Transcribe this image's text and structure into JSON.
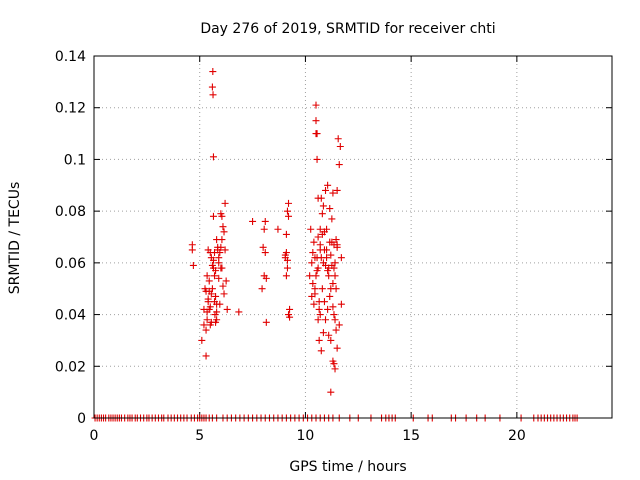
{
  "chart_data": {
    "type": "scatter",
    "title": "Day 276 of 2019, SRMTID for receiver chti",
    "xlabel": "GPS time / hours",
    "ylabel": "SRMTID / TECUs",
    "xlim": [
      0,
      24.5
    ],
    "ylim": [
      0,
      0.14
    ],
    "x_ticks": [
      "0",
      "5",
      "10",
      "15",
      "20"
    ],
    "y_ticks": [
      "0",
      "0.02",
      "0.04",
      "0.06",
      "0.08",
      "0.1",
      "0.12",
      "0.14"
    ],
    "grid": true,
    "legend": "none",
    "marker": "+",
    "color": "#e00000",
    "series": [
      {
        "x": [
          0.05,
          0.15,
          0.25,
          0.35,
          0.45,
          0.55,
          0.7,
          0.8,
          0.9,
          1.0,
          1.1,
          1.2,
          1.3,
          1.45,
          1.6,
          1.7,
          1.8,
          1.95,
          2.05,
          2.2,
          2.35,
          2.5,
          2.6,
          2.75,
          2.9,
          3.05,
          3.2,
          3.3,
          3.5,
          3.65,
          3.8,
          3.95,
          4.1,
          4.25,
          4.4,
          4.6,
          4.75,
          4.9,
          5.0,
          5.1,
          5.2,
          5.3,
          5.45,
          5.6,
          5.8,
          6.1,
          6.3,
          6.5,
          6.7,
          6.9,
          7.1,
          7.3,
          7.5,
          7.7,
          7.9,
          8.1,
          8.3,
          8.5,
          8.7,
          8.9,
          9.1,
          9.3,
          9.5,
          9.7,
          9.9,
          10.1,
          10.3,
          10.5,
          10.7,
          10.9,
          11.1,
          11.3,
          11.6,
          12.1,
          12.5,
          13.1,
          13.6,
          13.8,
          13.95,
          14.1,
          14.25,
          15.1,
          15.8,
          16.0,
          16.9,
          17.1,
          17.6,
          18.1,
          18.5,
          19.2,
          20.2,
          20.8,
          21.0,
          21.15,
          21.3,
          21.45,
          21.6,
          21.75,
          21.9,
          22.05,
          22.2,
          22.35,
          22.5,
          22.65,
          22.75,
          22.85
        ],
        "y": [
          0,
          0,
          0,
          0,
          0,
          0,
          0,
          0,
          0,
          0,
          0,
          0,
          0,
          0,
          0,
          0,
          0,
          0,
          0,
          0,
          0,
          0,
          0,
          0,
          0,
          0,
          0,
          0,
          0,
          0,
          0,
          0,
          0,
          0,
          0,
          0,
          0,
          0,
          0,
          0,
          0,
          0,
          0,
          0,
          0,
          0,
          0,
          0,
          0,
          0,
          0,
          0,
          0,
          0,
          0,
          0,
          0,
          0,
          0,
          0,
          0,
          0,
          0,
          0,
          0,
          0,
          0,
          0,
          0,
          0,
          0,
          0,
          0,
          0,
          0,
          0,
          0,
          0,
          0,
          0,
          0,
          0,
          0,
          0,
          0,
          0,
          0,
          0,
          0,
          0,
          0,
          0,
          0,
          0,
          0,
          0,
          0,
          0,
          0,
          0,
          0,
          0,
          0,
          0,
          0,
          0
        ]
      },
      {
        "x": [
          4.65,
          4.65,
          4.7,
          5.1,
          5.2,
          5.25,
          5.3,
          5.3,
          5.35,
          5.35,
          5.4,
          5.4,
          5.45,
          5.45,
          5.5,
          5.5,
          5.55,
          5.55,
          5.6,
          5.6,
          5.62,
          5.63,
          5.65,
          5.65,
          5.65,
          5.7,
          5.7,
          5.72,
          5.75,
          5.75,
          5.8,
          5.8,
          5.8,
          5.85,
          5.9,
          5.9,
          5.95,
          6.0,
          6.0,
          6.05,
          6.05,
          6.1,
          6.1,
          6.15,
          6.2,
          6.2,
          6.25,
          6.3,
          5.3,
          5.4,
          5.5,
          5.6,
          5.7,
          5.8,
          5.9,
          6.0,
          5.2,
          5.35,
          5.45,
          5.55,
          5.65,
          5.75,
          5.85,
          5.95,
          6.05,
          6.15,
          6.85,
          7.5,
          7.95,
          8.0,
          8.05,
          8.05,
          8.1,
          8.1,
          8.15,
          8.15,
          8.7,
          9.05,
          9.1,
          9.1,
          9.15,
          9.15,
          9.2,
          9.2,
          9.25,
          9.25,
          9.2,
          9.15,
          9.1,
          9.05
        ],
        "y": [
          0.067,
          0.065,
          0.059,
          0.03,
          0.042,
          0.05,
          0.024,
          0.034,
          0.038,
          0.055,
          0.045,
          0.065,
          0.042,
          0.053,
          0.036,
          0.064,
          0.048,
          0.037,
          0.059,
          0.128,
          0.134,
          0.125,
          0.101,
          0.078,
          0.061,
          0.055,
          0.064,
          0.04,
          0.047,
          0.057,
          0.038,
          0.044,
          0.069,
          0.066,
          0.054,
          0.06,
          0.064,
          0.079,
          0.066,
          0.078,
          0.058,
          0.051,
          0.074,
          0.072,
          0.083,
          0.065,
          0.053,
          0.042,
          0.049,
          0.046,
          0.043,
          0.05,
          0.045,
          0.041,
          0.062,
          0.058,
          0.036,
          0.041,
          0.049,
          0.062,
          0.058,
          0.037,
          0.065,
          0.044,
          0.069,
          0.048,
          0.041,
          0.076,
          0.05,
          0.066,
          0.073,
          0.055,
          0.076,
          0.064,
          0.054,
          0.037,
          0.073,
          0.063,
          0.071,
          0.064,
          0.08,
          0.058,
          0.083,
          0.04,
          0.042,
          0.039,
          0.078,
          0.061,
          0.055,
          0.062
        ]
      },
      {
        "x": [
          10.2,
          10.25,
          10.3,
          10.3,
          10.35,
          10.35,
          10.4,
          10.4,
          10.45,
          10.45,
          10.5,
          10.5,
          10.5,
          10.55,
          10.55,
          10.6,
          10.6,
          10.6,
          10.65,
          10.65,
          10.7,
          10.7,
          10.7,
          10.75,
          10.75,
          10.8,
          10.8,
          10.85,
          10.85,
          10.9,
          10.9,
          10.95,
          10.95,
          11.0,
          11.0,
          11.05,
          11.05,
          11.1,
          11.1,
          11.15,
          11.15,
          11.2,
          11.2,
          11.25,
          11.25,
          11.3,
          11.3,
          11.35,
          11.35,
          11.4,
          11.4,
          11.45,
          11.45,
          11.5,
          11.5,
          11.55,
          11.6,
          11.65,
          11.7,
          11.7,
          10.55,
          10.55,
          10.6,
          10.65,
          10.7,
          10.75,
          10.85,
          10.9,
          11.0,
          11.1,
          11.2,
          11.3,
          11.4,
          11.5,
          11.6,
          10.45,
          10.5,
          10.8,
          10.95,
          11.05,
          11.15,
          11.25,
          11.35
        ],
        "y": [
          0.055,
          0.073,
          0.06,
          0.047,
          0.064,
          0.052,
          0.068,
          0.044,
          0.062,
          0.05,
          0.121,
          0.115,
          0.11,
          0.11,
          0.1,
          0.085,
          0.07,
          0.058,
          0.045,
          0.03,
          0.073,
          0.065,
          0.04,
          0.062,
          0.026,
          0.071,
          0.05,
          0.033,
          0.06,
          0.065,
          0.045,
          0.059,
          0.038,
          0.073,
          0.062,
          0.057,
          0.042,
          0.055,
          0.032,
          0.068,
          0.047,
          0.063,
          0.03,
          0.077,
          0.059,
          0.052,
          0.087,
          0.067,
          0.04,
          0.06,
          0.055,
          0.05,
          0.034,
          0.088,
          0.067,
          0.108,
          0.098,
          0.105,
          0.062,
          0.044,
          0.062,
          0.057,
          0.038,
          0.042,
          0.067,
          0.085,
          0.082,
          0.072,
          0.065,
          0.058,
          0.05,
          0.043,
          0.038,
          0.027,
          0.036,
          0.048,
          0.055,
          0.079,
          0.088,
          0.09,
          0.081,
          0.068,
          0.058
        ]
      },
      {
        "x": [
          11.2,
          11.3,
          11.35,
          11.4,
          11.45,
          11.5
        ],
        "y": [
          0.01,
          0.022,
          0.021,
          0.019,
          0.069,
          0.066
        ]
      }
    ]
  }
}
